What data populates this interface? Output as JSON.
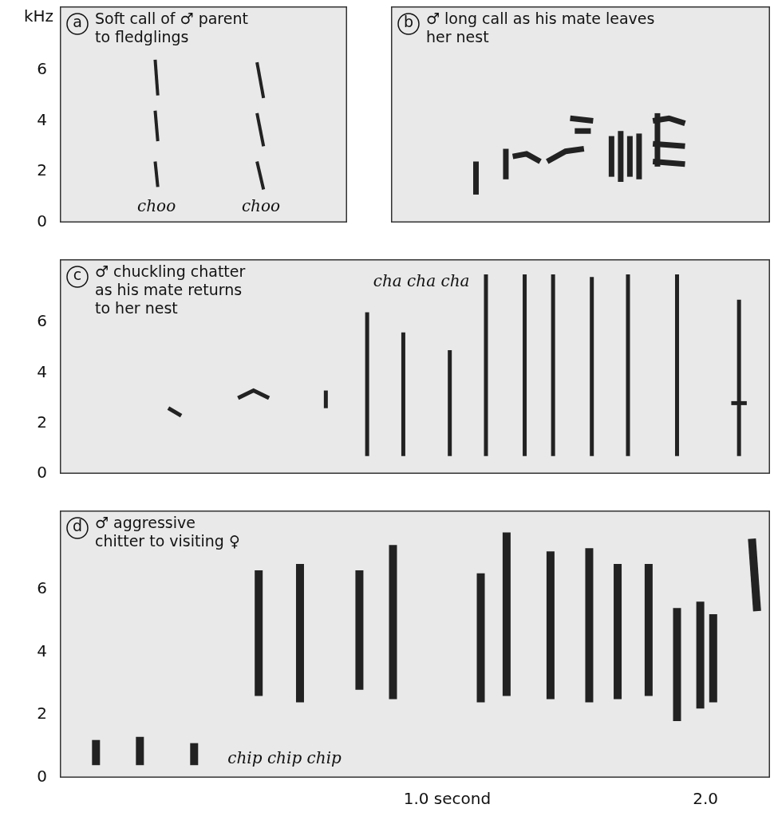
{
  "chart_data": [
    {
      "type": "spectrogram",
      "panel": "a",
      "title": "Soft call of ♂ parent to fledglings",
      "ylabel": "kHz",
      "xlim": [
        -0.5,
        0.6
      ],
      "ylim": [
        0,
        8.5
      ],
      "yticks": [
        0,
        2,
        4,
        6
      ],
      "tick_labels": "y",
      "color": "#222222",
      "segments": [
        {
          "x": [
            -0.135,
            -0.125
          ],
          "y": [
            6.4,
            5.0
          ]
        },
        {
          "x": [
            -0.135,
            -0.125
          ],
          "y": [
            4.4,
            3.2
          ]
        },
        {
          "x": [
            -0.135,
            -0.125
          ],
          "y": [
            2.4,
            1.4
          ]
        },
        {
          "x": [
            0.255,
            0.28
          ],
          "y": [
            6.3,
            4.9
          ]
        },
        {
          "x": [
            0.255,
            0.28
          ],
          "y": [
            4.3,
            3.0
          ]
        },
        {
          "x": [
            0.255,
            0.28
          ],
          "y": [
            2.4,
            1.3
          ]
        }
      ],
      "annotations": [
        {
          "text": "choo",
          "x": -0.13,
          "y": 0.6
        },
        {
          "text": "choo",
          "x": 0.27,
          "y": 0.6
        }
      ]
    },
    {
      "type": "spectrogram",
      "panel": "b",
      "title": "♂ long call as his mate leaves her nest",
      "xlim": [
        0.6,
        2.25
      ],
      "ylim": [
        0,
        8.5
      ],
      "tick_labels": false,
      "color": "#222222",
      "segments": [
        {
          "x": [
            0.97,
            0.97
          ],
          "y": [
            1.1,
            2.4
          ]
        },
        {
          "x": [
            1.1,
            1.1
          ],
          "y": [
            1.7,
            2.9
          ]
        },
        {
          "x": [
            1.13,
            1.19,
            1.25
          ],
          "y": [
            2.6,
            2.7,
            2.4
          ]
        },
        {
          "x": [
            1.28,
            1.36,
            1.44
          ],
          "y": [
            2.4,
            2.8,
            2.9
          ]
        },
        {
          "x": [
            1.38,
            1.48
          ],
          "y": [
            4.1,
            4.0
          ]
        },
        {
          "x": [
            1.4,
            1.47
          ],
          "y": [
            3.6,
            3.6
          ]
        },
        {
          "x": [
            1.56,
            1.56
          ],
          "y": [
            1.8,
            3.4
          ]
        },
        {
          "x": [
            1.6,
            1.6
          ],
          "y": [
            1.6,
            3.6
          ]
        },
        {
          "x": [
            1.64,
            1.64
          ],
          "y": [
            1.8,
            3.4
          ]
        },
        {
          "x": [
            1.68,
            1.68
          ],
          "y": [
            1.7,
            3.5
          ]
        },
        {
          "x": [
            1.74,
            1.81,
            1.88
          ],
          "y": [
            4.0,
            4.1,
            3.9
          ]
        },
        {
          "x": [
            1.74,
            1.88
          ],
          "y": [
            3.1,
            3.0
          ]
        },
        {
          "x": [
            1.74,
            1.88
          ],
          "y": [
            2.4,
            2.3
          ]
        },
        {
          "x": [
            1.76,
            1.76
          ],
          "y": [
            2.2,
            4.3
          ]
        }
      ]
    },
    {
      "type": "spectrogram",
      "panel": "c",
      "title": "♂ chuckling chatter as his mate returns to her nest",
      "xlim": [
        -0.5,
        2.25
      ],
      "ylim": [
        0,
        8.5
      ],
      "yticks": [
        0,
        2,
        4,
        6
      ],
      "tick_labels": "y",
      "color": "#222222",
      "segments": [
        {
          "x": [
            -0.08,
            -0.03
          ],
          "y": [
            2.6,
            2.3
          ]
        },
        {
          "x": [
            0.19,
            0.25,
            0.31
          ],
          "y": [
            3.0,
            3.3,
            3.0
          ]
        },
        {
          "x": [
            0.53,
            0.53
          ],
          "y": [
            2.6,
            3.3
          ]
        },
        {
          "x": [
            0.69,
            0.69
          ],
          "y": [
            0.7,
            6.4
          ]
        },
        {
          "x": [
            0.83,
            0.83
          ],
          "y": [
            0.7,
            5.6
          ]
        },
        {
          "x": [
            1.01,
            1.01
          ],
          "y": [
            0.7,
            4.9
          ]
        },
        {
          "x": [
            1.15,
            1.15
          ],
          "y": [
            0.7,
            7.9
          ]
        },
        {
          "x": [
            1.3,
            1.3
          ],
          "y": [
            0.7,
            7.9
          ]
        },
        {
          "x": [
            1.41,
            1.41
          ],
          "y": [
            0.7,
            7.9
          ]
        },
        {
          "x": [
            1.56,
            1.56
          ],
          "y": [
            0.7,
            7.8
          ]
        },
        {
          "x": [
            1.7,
            1.7
          ],
          "y": [
            0.7,
            7.9
          ]
        },
        {
          "x": [
            1.89,
            1.89
          ],
          "y": [
            0.7,
            7.9
          ]
        },
        {
          "x": [
            2.13,
            2.13
          ],
          "y": [
            0.7,
            6.9
          ]
        },
        {
          "x": [
            2.1,
            2.16
          ],
          "y": [
            2.8,
            2.8
          ]
        }
      ],
      "annotations": [
        {
          "text": "cha cha cha",
          "x": 0.9,
          "y": 7.6
        }
      ]
    },
    {
      "type": "spectrogram",
      "panel": "d",
      "title": "♂ aggressive chitter to visiting ♀",
      "xlim": [
        -0.5,
        2.25
      ],
      "ylim": [
        0,
        8.5
      ],
      "yticks": [
        0,
        2,
        4,
        6
      ],
      "xticks": [
        {
          "value": 1,
          "label": "1.0 second"
        },
        {
          "value": 2,
          "label": "2.0"
        }
      ],
      "tick_labels": true,
      "color": "#222222",
      "segments": [
        {
          "x": [
            -0.36,
            -0.36
          ],
          "y": [
            0.4,
            1.2
          ]
        },
        {
          "x": [
            -0.19,
            -0.19
          ],
          "y": [
            0.4,
            1.3
          ]
        },
        {
          "x": [
            0.02,
            0.02
          ],
          "y": [
            0.4,
            1.1
          ]
        },
        {
          "x": [
            0.27,
            0.27
          ],
          "y": [
            2.6,
            6.6
          ]
        },
        {
          "x": [
            0.43,
            0.43
          ],
          "y": [
            2.4,
            6.8
          ]
        },
        {
          "x": [
            0.66,
            0.66
          ],
          "y": [
            2.8,
            6.6
          ]
        },
        {
          "x": [
            0.79,
            0.79
          ],
          "y": [
            2.5,
            7.4
          ]
        },
        {
          "x": [
            1.13,
            1.13
          ],
          "y": [
            2.4,
            6.5
          ]
        },
        {
          "x": [
            1.23,
            1.23
          ],
          "y": [
            2.6,
            7.8
          ]
        },
        {
          "x": [
            1.4,
            1.4
          ],
          "y": [
            2.5,
            7.2
          ]
        },
        {
          "x": [
            1.55,
            1.55
          ],
          "y": [
            2.4,
            7.3
          ]
        },
        {
          "x": [
            1.66,
            1.66
          ],
          "y": [
            2.5,
            6.8
          ]
        },
        {
          "x": [
            1.78,
            1.78
          ],
          "y": [
            2.6,
            6.8
          ]
        },
        {
          "x": [
            1.89,
            1.89
          ],
          "y": [
            1.8,
            5.4
          ]
        },
        {
          "x": [
            1.98,
            1.98
          ],
          "y": [
            2.2,
            5.6
          ]
        },
        {
          "x": [
            2.03,
            2.03
          ],
          "y": [
            2.4,
            5.2
          ]
        },
        {
          "x": [
            2.2,
            2.18
          ],
          "y": [
            5.3,
            7.6
          ]
        }
      ],
      "annotations": [
        {
          "text": "chip chip chip",
          "x": 0.37,
          "y": 0.6
        }
      ]
    }
  ]
}
